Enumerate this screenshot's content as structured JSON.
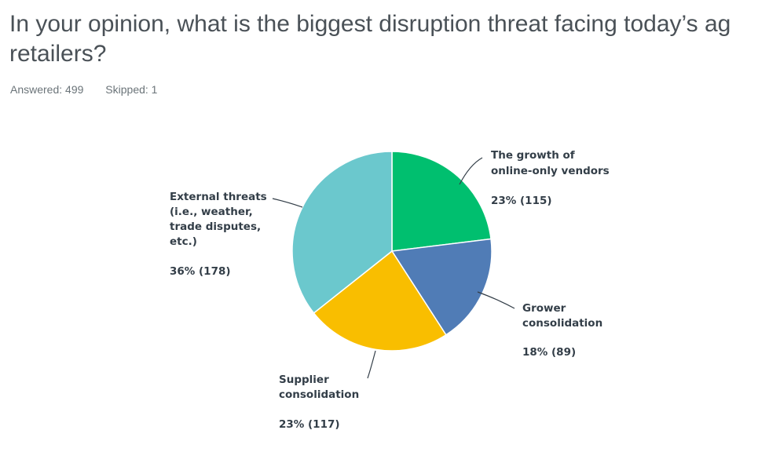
{
  "question": {
    "text": "In your opinion, what is the biggest disruption threat facing today’s ag retailers?"
  },
  "stats": {
    "answered": "Answered: 499",
    "skipped": "Skipped: 1"
  },
  "chart_data": {
    "type": "pie",
    "slices": [
      {
        "label_lines": [
          "The growth of",
          "online-only vendors"
        ],
        "percent": 23,
        "count": 115,
        "value_text": "23% (115)",
        "color": "#00bf6f"
      },
      {
        "label_lines": [
          "Grower",
          "consolidation"
        ],
        "percent": 18,
        "count": 89,
        "value_text": "18% (89)",
        "color": "#507cb6"
      },
      {
        "label_lines": [
          "Supplier",
          "consolidation"
        ],
        "percent": 23,
        "count": 117,
        "value_text": "23% (117)",
        "color": "#f9be00"
      },
      {
        "label_lines": [
          "External threats",
          "(i.e., weather,",
          "trade disputes,",
          "etc.)"
        ],
        "percent": 36,
        "count": 178,
        "value_text": "36% (178)",
        "color": "#6bc8cd"
      }
    ]
  }
}
